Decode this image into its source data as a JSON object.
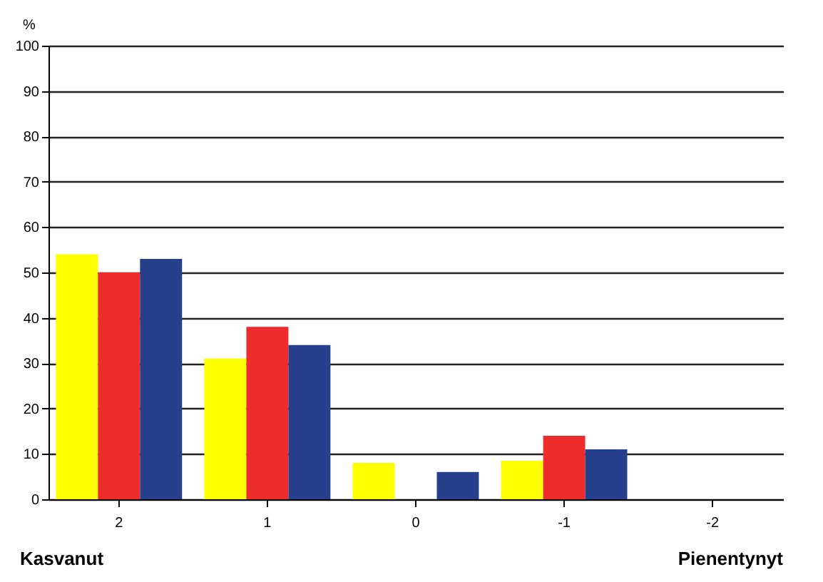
{
  "chart_data": {
    "type": "bar",
    "ylabel": "%",
    "categories": [
      "2",
      "1",
      "0",
      "-1",
      "-2"
    ],
    "series": [
      {
        "color": "#ffff00",
        "values": [
          54,
          31,
          8,
          8.5,
          null
        ]
      },
      {
        "color": "#ee2c2c",
        "values": [
          50,
          38,
          null,
          14,
          null
        ]
      },
      {
        "color": "#26408b",
        "values": [
          53,
          34,
          6,
          11,
          null
        ]
      }
    ],
    "ylim": [
      0,
      100
    ],
    "yticks": [
      0,
      10,
      20,
      30,
      40,
      50,
      60,
      70,
      80,
      90,
      100
    ],
    "grid": "y",
    "legend": false,
    "annotations": [
      "Kasvanut",
      "Pienentynyt"
    ]
  }
}
